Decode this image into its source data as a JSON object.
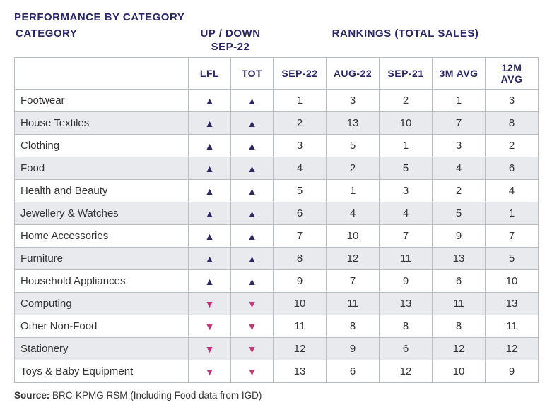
{
  "title": "PERFORMANCE BY CATEGORY",
  "header": {
    "category": "CATEGORY",
    "updown": "UP / DOWN",
    "updown_sub": "SEP-22",
    "rankings": "RANKINGS (TOTAL SALES)"
  },
  "columns": {
    "cat": "",
    "lfl": "LFL",
    "tot": "TOT",
    "sep22": "SEP-22",
    "aug22": "AUG-22",
    "sep21": "SEP-21",
    "m3": "3M AVG",
    "m12": "12M AVG"
  },
  "arrow_up_glyph": "▲",
  "arrow_down_glyph": "▼",
  "colors": {
    "heading": "#2a2668",
    "up": "#2a2668",
    "down": "#c2357a",
    "stripe": "#e9eaee",
    "border": "#b8bcc4",
    "text": "#333333",
    "background": "#ffffff"
  },
  "rows": [
    {
      "cat": "Footwear",
      "lfl": "up",
      "tot": "up",
      "sep22": 1,
      "aug22": 3,
      "sep21": 2,
      "m3": 1,
      "m12": 3
    },
    {
      "cat": "House Textiles",
      "lfl": "up",
      "tot": "up",
      "sep22": 2,
      "aug22": 13,
      "sep21": 10,
      "m3": 7,
      "m12": 8
    },
    {
      "cat": "Clothing",
      "lfl": "up",
      "tot": "up",
      "sep22": 3,
      "aug22": 5,
      "sep21": 1,
      "m3": 3,
      "m12": 2
    },
    {
      "cat": "Food",
      "lfl": "up",
      "tot": "up",
      "sep22": 4,
      "aug22": 2,
      "sep21": 5,
      "m3": 4,
      "m12": 6
    },
    {
      "cat": "Health and Beauty",
      "lfl": "up",
      "tot": "up",
      "sep22": 5,
      "aug22": 1,
      "sep21": 3,
      "m3": 2,
      "m12": 4
    },
    {
      "cat": "Jewellery & Watches",
      "lfl": "up",
      "tot": "up",
      "sep22": 6,
      "aug22": 4,
      "sep21": 4,
      "m3": 5,
      "m12": 1
    },
    {
      "cat": "Home Accessories",
      "lfl": "up",
      "tot": "up",
      "sep22": 7,
      "aug22": 10,
      "sep21": 7,
      "m3": 9,
      "m12": 7
    },
    {
      "cat": "Furniture",
      "lfl": "up",
      "tot": "up",
      "sep22": 8,
      "aug22": 12,
      "sep21": 11,
      "m3": 13,
      "m12": 5
    },
    {
      "cat": "Household Appliances",
      "lfl": "up",
      "tot": "up",
      "sep22": 9,
      "aug22": 7,
      "sep21": 9,
      "m3": 6,
      "m12": 10
    },
    {
      "cat": "Computing",
      "lfl": "down",
      "tot": "down",
      "sep22": 10,
      "aug22": 11,
      "sep21": 13,
      "m3": 11,
      "m12": 13
    },
    {
      "cat": "Other Non-Food",
      "lfl": "down",
      "tot": "down",
      "sep22": 11,
      "aug22": 8,
      "sep21": 8,
      "m3": 8,
      "m12": 11
    },
    {
      "cat": "Stationery",
      "lfl": "down",
      "tot": "down",
      "sep22": 12,
      "aug22": 9,
      "sep21": 6,
      "m3": 12,
      "m12": 12
    },
    {
      "cat": "Toys & Baby Equipment",
      "lfl": "down",
      "tot": "down",
      "sep22": 13,
      "aug22": 6,
      "sep21": 12,
      "m3": 10,
      "m12": 9
    }
  ],
  "source_label": "Source:",
  "source_text": "BRC-KPMG RSM (Including Food data from IGD)"
}
